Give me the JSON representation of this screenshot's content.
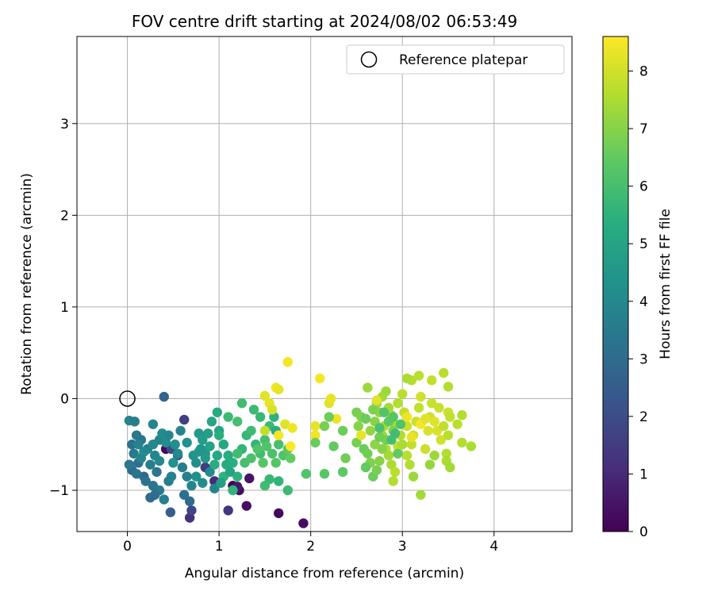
{
  "chart_data": {
    "type": "scatter",
    "title": "FOV centre drift starting at 2024/08/02 06:53:49",
    "xlabel": "Angular distance from reference (arcmin)",
    "ylabel": "Rotation from reference (arcmin)",
    "xlim": [
      -0.55,
      4.85
    ],
    "ylim": [
      -1.45,
      3.95
    ],
    "xticks": [
      "0",
      "1",
      "2",
      "3",
      "4"
    ],
    "yticks": [
      "−1",
      "0",
      "1",
      "2",
      "3"
    ],
    "grid": true,
    "legend": {
      "position": "top-right",
      "entries": [
        "Reference platepar"
      ]
    },
    "reference_point": {
      "x": 0,
      "y": 0
    },
    "colorbar": {
      "label": "Hours from first FF file",
      "range": [
        0,
        8.6
      ],
      "ticks": [
        "0",
        "1",
        "2",
        "3",
        "4",
        "5",
        "6",
        "7",
        "8"
      ],
      "colormap": "viridis"
    },
    "points": [
      {
        "x": 0.42,
        "y": -0.55,
        "c": 0.2
      },
      {
        "x": 1.15,
        "y": -0.95,
        "c": 0.1
      },
      {
        "x": 1.22,
        "y": -1.0,
        "c": 0.3
      },
      {
        "x": 1.3,
        "y": -1.17,
        "c": 0.4
      },
      {
        "x": 1.65,
        "y": -1.25,
        "c": 0.2
      },
      {
        "x": 1.92,
        "y": -1.36,
        "c": 0.3
      },
      {
        "x": 1.33,
        "y": -0.87,
        "c": 0.5
      },
      {
        "x": 1.2,
        "y": -0.96,
        "c": 0.6
      },
      {
        "x": 0.68,
        "y": -1.3,
        "c": 1.2
      },
      {
        "x": 0.62,
        "y": -0.23,
        "c": 1.6
      },
      {
        "x": 1.1,
        "y": -1.22,
        "c": 1.3
      },
      {
        "x": 0.95,
        "y": -0.9,
        "c": 1.0
      },
      {
        "x": 0.48,
        "y": -0.55,
        "c": 2.0
      },
      {
        "x": 0.55,
        "y": -0.62,
        "c": 2.2
      },
      {
        "x": 0.4,
        "y": 0.02,
        "c": 2.8
      },
      {
        "x": 0.85,
        "y": -0.75,
        "c": 1.5
      },
      {
        "x": 0.7,
        "y": -1.22,
        "c": 1.8
      },
      {
        "x": 0.47,
        "y": -1.24,
        "c": 2.6
      },
      {
        "x": 0.02,
        "y": -0.24,
        "c": 3.8
      },
      {
        "x": 0.08,
        "y": -0.25,
        "c": 3.6
      },
      {
        "x": 0.05,
        "y": -0.5,
        "c": 3.2
      },
      {
        "x": 0.1,
        "y": -0.4,
        "c": 3.4
      },
      {
        "x": 0.15,
        "y": -0.45,
        "c": 3.3
      },
      {
        "x": 0.07,
        "y": -0.6,
        "c": 3.5
      },
      {
        "x": 0.12,
        "y": -0.7,
        "c": 3.1
      },
      {
        "x": 0.05,
        "y": -0.78,
        "c": 3.0
      },
      {
        "x": 0.18,
        "y": -0.85,
        "c": 2.9
      },
      {
        "x": 0.22,
        "y": -0.55,
        "c": 3.7
      },
      {
        "x": 0.28,
        "y": -0.5,
        "c": 4.0
      },
      {
        "x": 0.3,
        "y": -0.62,
        "c": 3.9
      },
      {
        "x": 0.25,
        "y": -0.72,
        "c": 3.6
      },
      {
        "x": 0.32,
        "y": -0.8,
        "c": 3.4
      },
      {
        "x": 0.35,
        "y": -0.45,
        "c": 3.8
      },
      {
        "x": 0.38,
        "y": -0.38,
        "c": 4.1
      },
      {
        "x": 0.42,
        "y": -0.48,
        "c": 4.2
      },
      {
        "x": 0.45,
        "y": -0.4,
        "c": 3.9
      },
      {
        "x": 0.2,
        "y": -0.9,
        "c": 3.2
      },
      {
        "x": 0.28,
        "y": -0.95,
        "c": 3.3
      },
      {
        "x": 0.35,
        "y": -1.0,
        "c": 3.5
      },
      {
        "x": 0.4,
        "y": -1.1,
        "c": 3.7
      },
      {
        "x": 0.3,
        "y": -1.05,
        "c": 3.1
      },
      {
        "x": 0.25,
        "y": -1.08,
        "c": 3.0
      },
      {
        "x": 0.45,
        "y": -0.9,
        "c": 3.6
      },
      {
        "x": 0.5,
        "y": -0.7,
        "c": 4.3
      },
      {
        "x": 0.55,
        "y": -0.6,
        "c": 4.0
      },
      {
        "x": 0.58,
        "y": -0.35,
        "c": 3.8
      },
      {
        "x": 0.6,
        "y": -0.75,
        "c": 3.6
      },
      {
        "x": 0.65,
        "y": -0.85,
        "c": 3.7
      },
      {
        "x": 0.7,
        "y": -0.95,
        "c": 3.9
      },
      {
        "x": 0.62,
        "y": -1.05,
        "c": 3.2
      },
      {
        "x": 0.68,
        "y": -1.12,
        "c": 3.0
      },
      {
        "x": 0.75,
        "y": -0.7,
        "c": 4.2
      },
      {
        "x": 0.8,
        "y": -0.55,
        "c": 4.4
      },
      {
        "x": 0.78,
        "y": -0.38,
        "c": 4.6
      },
      {
        "x": 0.85,
        "y": -0.6,
        "c": 4.5
      },
      {
        "x": 0.9,
        "y": -0.8,
        "c": 4.1
      },
      {
        "x": 0.95,
        "y": -0.98,
        "c": 3.9
      },
      {
        "x": 0.15,
        "y": -0.65,
        "c": 3.9
      },
      {
        "x": 0.18,
        "y": -0.58,
        "c": 4.1
      },
      {
        "x": 0.12,
        "y": -0.5,
        "c": 3.8
      },
      {
        "x": 0.02,
        "y": -0.72,
        "c": 3.4
      },
      {
        "x": 0.1,
        "y": -0.82,
        "c": 3.3
      },
      {
        "x": 0.28,
        "y": -0.28,
        "c": 3.9
      },
      {
        "x": 0.35,
        "y": -0.68,
        "c": 4.0
      },
      {
        "x": 0.48,
        "y": -0.85,
        "c": 3.8
      },
      {
        "x": 0.52,
        "y": -0.5,
        "c": 4.2
      },
      {
        "x": 0.65,
        "y": -0.48,
        "c": 4.3
      },
      {
        "x": 0.72,
        "y": -0.62,
        "c": 4.4
      },
      {
        "x": 0.82,
        "y": -0.45,
        "c": 4.7
      },
      {
        "x": 0.88,
        "y": -0.38,
        "c": 4.8
      },
      {
        "x": 0.92,
        "y": -0.25,
        "c": 5.0
      },
      {
        "x": 0.98,
        "y": -0.15,
        "c": 5.2
      },
      {
        "x": 1.0,
        "y": -0.35,
        "c": 5.0
      },
      {
        "x": 1.05,
        "y": -0.5,
        "c": 5.1
      },
      {
        "x": 1.1,
        "y": -0.62,
        "c": 5.3
      },
      {
        "x": 1.15,
        "y": -0.7,
        "c": 5.4
      },
      {
        "x": 1.2,
        "y": -0.85,
        "c": 5.5
      },
      {
        "x": 1.25,
        "y": -0.55,
        "c": 5.6
      },
      {
        "x": 1.3,
        "y": -0.4,
        "c": 5.7
      },
      {
        "x": 1.35,
        "y": -0.35,
        "c": 5.8
      },
      {
        "x": 1.4,
        "y": -0.5,
        "c": 5.6
      },
      {
        "x": 1.45,
        "y": -0.6,
        "c": 5.9
      },
      {
        "x": 1.5,
        "y": -0.45,
        "c": 6.0
      },
      {
        "x": 1.55,
        "y": -0.3,
        "c": 5.8
      },
      {
        "x": 1.6,
        "y": -0.2,
        "c": 5.5
      },
      {
        "x": 1.62,
        "y": -0.35,
        "c": 5.4
      },
      {
        "x": 1.55,
        "y": -0.88,
        "c": 5.7
      },
      {
        "x": 1.65,
        "y": -0.9,
        "c": 5.6
      },
      {
        "x": 1.75,
        "y": -1.0,
        "c": 5.8
      },
      {
        "x": 1.5,
        "y": -0.95,
        "c": 5.9
      },
      {
        "x": 1.38,
        "y": -0.12,
        "c": 5.8
      },
      {
        "x": 1.25,
        "y": -0.05,
        "c": 5.9
      },
      {
        "x": 1.45,
        "y": -0.2,
        "c": 5.7
      },
      {
        "x": 1.2,
        "y": -0.25,
        "c": 6.0
      },
      {
        "x": 1.1,
        "y": -0.2,
        "c": 5.8
      },
      {
        "x": 1.0,
        "y": -0.4,
        "c": 5.4
      },
      {
        "x": 1.05,
        "y": -0.85,
        "c": 5.5
      },
      {
        "x": 0.95,
        "y": -0.72,
        "c": 5.3
      },
      {
        "x": 1.15,
        "y": -1.0,
        "c": 5.6
      },
      {
        "x": 1.2,
        "y": -0.6,
        "c": 5.9
      },
      {
        "x": 1.28,
        "y": -0.7,
        "c": 6.0
      },
      {
        "x": 1.35,
        "y": -0.65,
        "c": 6.1
      },
      {
        "x": 1.42,
        "y": -0.55,
        "c": 6.2
      },
      {
        "x": 1.48,
        "y": -0.7,
        "c": 6.3
      },
      {
        "x": 1.58,
        "y": -0.6,
        "c": 6.1
      },
      {
        "x": 1.65,
        "y": -0.5,
        "c": 6.0
      },
      {
        "x": 1.7,
        "y": -0.62,
        "c": 6.2
      },
      {
        "x": 1.75,
        "y": -0.55,
        "c": 6.4
      },
      {
        "x": 1.78,
        "y": -0.65,
        "c": 6.5
      },
      {
        "x": 1.62,
        "y": -0.7,
        "c": 6.3
      },
      {
        "x": 1.52,
        "y": -0.52,
        "c": 6.2
      },
      {
        "x": 0.85,
        "y": -0.65,
        "c": 4.6
      },
      {
        "x": 0.78,
        "y": -0.58,
        "c": 4.5
      },
      {
        "x": 0.9,
        "y": -0.52,
        "c": 4.9
      },
      {
        "x": 0.98,
        "y": -0.62,
        "c": 5.1
      },
      {
        "x": 1.08,
        "y": -0.72,
        "c": 5.2
      },
      {
        "x": 0.75,
        "y": -0.85,
        "c": 4.3
      },
      {
        "x": 0.82,
        "y": -0.92,
        "c": 4.2
      },
      {
        "x": 1.02,
        "y": -0.92,
        "c": 4.8
      },
      {
        "x": 1.12,
        "y": -0.8,
        "c": 5.0
      },
      {
        "x": 1.5,
        "y": 0.03,
        "c": 8.2
      },
      {
        "x": 1.55,
        "y": -0.05,
        "c": 8.3
      },
      {
        "x": 1.58,
        "y": -0.12,
        "c": 8.1
      },
      {
        "x": 1.62,
        "y": 0.12,
        "c": 8.4
      },
      {
        "x": 1.65,
        "y": 0.1,
        "c": 8.3
      },
      {
        "x": 1.75,
        "y": 0.4,
        "c": 8.5
      },
      {
        "x": 1.72,
        "y": -0.28,
        "c": 8.2
      },
      {
        "x": 1.8,
        "y": -0.32,
        "c": 8.4
      },
      {
        "x": 1.65,
        "y": -0.4,
        "c": 8.5
      },
      {
        "x": 1.78,
        "y": -0.52,
        "c": 8.6
      },
      {
        "x": 1.5,
        "y": -0.35,
        "c": 7.8
      },
      {
        "x": 2.05,
        "y": -0.3,
        "c": 8.3
      },
      {
        "x": 2.05,
        "y": -0.4,
        "c": 8.4
      },
      {
        "x": 2.1,
        "y": 0.22,
        "c": 8.5
      },
      {
        "x": 2.2,
        "y": -0.05,
        "c": 8.2
      },
      {
        "x": 2.22,
        "y": 0.0,
        "c": 8.3
      },
      {
        "x": 2.28,
        "y": -0.22,
        "c": 8.4
      },
      {
        "x": 2.05,
        "y": -0.48,
        "c": 6.6
      },
      {
        "x": 2.2,
        "y": -0.2,
        "c": 6.7
      },
      {
        "x": 2.15,
        "y": -0.3,
        "c": 6.8
      },
      {
        "x": 2.25,
        "y": -0.52,
        "c": 6.5
      },
      {
        "x": 2.35,
        "y": -0.35,
        "c": 6.6
      },
      {
        "x": 2.38,
        "y": -0.65,
        "c": 6.7
      },
      {
        "x": 2.35,
        "y": -0.8,
        "c": 6.4
      },
      {
        "x": 2.15,
        "y": -0.82,
        "c": 6.3
      },
      {
        "x": 1.95,
        "y": -0.82,
        "c": 6.2
      },
      {
        "x": 2.5,
        "y": -0.15,
        "c": 6.8
      },
      {
        "x": 2.55,
        "y": -0.2,
        "c": 6.9
      },
      {
        "x": 2.52,
        "y": -0.3,
        "c": 7.0
      },
      {
        "x": 2.5,
        "y": -0.48,
        "c": 6.8
      },
      {
        "x": 2.58,
        "y": -0.55,
        "c": 6.6
      },
      {
        "x": 2.62,
        "y": -0.6,
        "c": 6.7
      },
      {
        "x": 2.65,
        "y": -0.7,
        "c": 6.9
      },
      {
        "x": 2.6,
        "y": -0.75,
        "c": 6.5
      },
      {
        "x": 2.68,
        "y": -0.85,
        "c": 6.6
      },
      {
        "x": 2.72,
        "y": -0.78,
        "c": 6.8
      },
      {
        "x": 2.75,
        "y": -0.68,
        "c": 7.0
      },
      {
        "x": 2.7,
        "y": -0.5,
        "c": 7.1
      },
      {
        "x": 2.65,
        "y": -0.35,
        "c": 7.2
      },
      {
        "x": 2.7,
        "y": -0.25,
        "c": 7.0
      },
      {
        "x": 2.75,
        "y": -0.15,
        "c": 7.1
      },
      {
        "x": 2.62,
        "y": 0.12,
        "c": 7.3
      },
      {
        "x": 2.72,
        "y": -0.05,
        "c": 7.2
      },
      {
        "x": 2.78,
        "y": 0.02,
        "c": 7.4
      },
      {
        "x": 2.82,
        "y": 0.08,
        "c": 7.3
      },
      {
        "x": 2.85,
        "y": -0.1,
        "c": 7.4
      },
      {
        "x": 2.8,
        "y": -0.3,
        "c": 7.5
      },
      {
        "x": 2.78,
        "y": -0.4,
        "c": 7.3
      },
      {
        "x": 2.82,
        "y": -0.55,
        "c": 7.6
      },
      {
        "x": 2.85,
        "y": -0.62,
        "c": 7.4
      },
      {
        "x": 2.88,
        "y": -0.72,
        "c": 7.5
      },
      {
        "x": 2.92,
        "y": -0.8,
        "c": 7.7
      },
      {
        "x": 2.9,
        "y": -0.9,
        "c": 7.6
      },
      {
        "x": 2.95,
        "y": -0.52,
        "c": 7.8
      },
      {
        "x": 2.98,
        "y": -0.4,
        "c": 7.6
      },
      {
        "x": 2.92,
        "y": -0.28,
        "c": 7.5
      },
      {
        "x": 2.88,
        "y": -0.18,
        "c": 7.4
      },
      {
        "x": 2.95,
        "y": -0.05,
        "c": 7.6
      },
      {
        "x": 3.0,
        "y": 0.05,
        "c": 7.7
      },
      {
        "x": 3.02,
        "y": -0.15,
        "c": 7.8
      },
      {
        "x": 3.05,
        "y": -0.3,
        "c": 7.9
      },
      {
        "x": 3.0,
        "y": -0.5,
        "c": 7.5
      },
      {
        "x": 3.05,
        "y": -0.62,
        "c": 7.7
      },
      {
        "x": 3.08,
        "y": -0.72,
        "c": 7.6
      },
      {
        "x": 3.1,
        "y": -0.5,
        "c": 7.8
      },
      {
        "x": 3.12,
        "y": -0.4,
        "c": 8.0
      },
      {
        "x": 3.15,
        "y": -0.25,
        "c": 7.9
      },
      {
        "x": 3.18,
        "y": -0.1,
        "c": 7.8
      },
      {
        "x": 3.2,
        "y": 0.02,
        "c": 8.0
      },
      {
        "x": 3.1,
        "y": 0.2,
        "c": 7.6
      },
      {
        "x": 3.05,
        "y": 0.22,
        "c": 7.5
      },
      {
        "x": 3.18,
        "y": 0.25,
        "c": 7.7
      },
      {
        "x": 3.2,
        "y": -1.05,
        "c": 7.4
      },
      {
        "x": 3.12,
        "y": -0.85,
        "c": 7.3
      },
      {
        "x": 3.25,
        "y": -0.55,
        "c": 7.9
      },
      {
        "x": 3.28,
        "y": -0.35,
        "c": 8.1
      },
      {
        "x": 3.3,
        "y": -0.2,
        "c": 8.0
      },
      {
        "x": 3.32,
        "y": -0.05,
        "c": 7.9
      },
      {
        "x": 3.35,
        "y": -0.25,
        "c": 8.2
      },
      {
        "x": 3.38,
        "y": -0.35,
        "c": 8.1
      },
      {
        "x": 3.32,
        "y": 0.2,
        "c": 7.8
      },
      {
        "x": 3.4,
        "y": -0.1,
        "c": 7.9
      },
      {
        "x": 3.42,
        "y": -0.45,
        "c": 8.0
      },
      {
        "x": 3.45,
        "y": -0.3,
        "c": 7.8
      },
      {
        "x": 3.48,
        "y": -0.6,
        "c": 7.6
      },
      {
        "x": 3.5,
        "y": -0.4,
        "c": 7.7
      },
      {
        "x": 3.5,
        "y": -0.15,
        "c": 7.9
      },
      {
        "x": 3.52,
        "y": -0.2,
        "c": 7.8
      },
      {
        "x": 3.45,
        "y": 0.28,
        "c": 7.7
      },
      {
        "x": 3.5,
        "y": 0.13,
        "c": 7.6
      },
      {
        "x": 3.48,
        "y": -0.68,
        "c": 7.5
      },
      {
        "x": 3.52,
        "y": -0.75,
        "c": 7.4
      },
      {
        "x": 3.6,
        "y": -0.28,
        "c": 7.7
      },
      {
        "x": 3.65,
        "y": -0.48,
        "c": 7.6
      },
      {
        "x": 3.75,
        "y": -0.52,
        "c": 7.5
      },
      {
        "x": 3.65,
        "y": -0.18,
        "c": 7.6
      },
      {
        "x": 3.35,
        "y": -0.62,
        "c": 7.3
      },
      {
        "x": 3.3,
        "y": -0.72,
        "c": 7.2
      },
      {
        "x": 2.9,
        "y": -0.35,
        "c": 6.9
      },
      {
        "x": 2.82,
        "y": -0.45,
        "c": 6.8
      },
      {
        "x": 2.78,
        "y": -0.55,
        "c": 7.0
      },
      {
        "x": 2.75,
        "y": -0.42,
        "c": 6.7
      },
      {
        "x": 2.68,
        "y": -0.12,
        "c": 6.9
      },
      {
        "x": 2.6,
        "y": -0.22,
        "c": 6.6
      },
      {
        "x": 2.55,
        "y": -0.4,
        "c": 8.3
      },
      {
        "x": 2.72,
        "y": -0.02,
        "c": 8.2
      },
      {
        "x": 3.05,
        "y": -0.2,
        "c": 8.4
      },
      {
        "x": 3.1,
        "y": -0.42,
        "c": 8.3
      },
      {
        "x": 3.2,
        "y": -0.28,
        "c": 8.5
      },
      {
        "x": 3.25,
        "y": -0.22,
        "c": 8.2
      },
      {
        "x": 2.95,
        "y": -0.6,
        "c": 6.5
      },
      {
        "x": 2.85,
        "y": -0.25,
        "c": 6.4
      },
      {
        "x": 2.8,
        "y": -0.15,
        "c": 6.2
      },
      {
        "x": 2.75,
        "y": -0.32,
        "c": 6.1
      },
      {
        "x": 2.88,
        "y": -0.45,
        "c": 6.0
      },
      {
        "x": 2.92,
        "y": -0.38,
        "c": 5.9
      },
      {
        "x": 2.9,
        "y": -0.2,
        "c": 6.3
      },
      {
        "x": 2.98,
        "y": -0.28,
        "c": 6.2
      }
    ]
  }
}
